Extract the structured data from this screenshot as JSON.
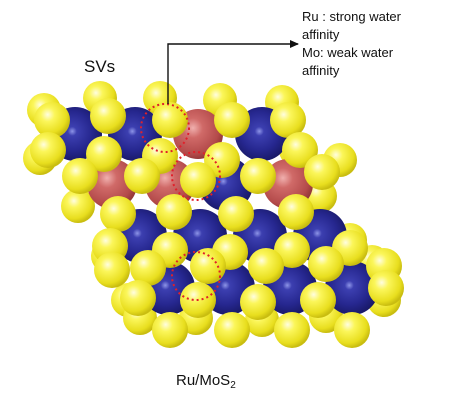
{
  "annotation": {
    "defect_label": "SVs",
    "note_lines": [
      "Ru : strong water",
      "affinity",
      "Mo: weak water",
      "affinity"
    ]
  },
  "caption": {
    "main": "Ru/MoS",
    "subscript": "2"
  },
  "colors": {
    "sulfur": "#f3ee3a",
    "molybdenum": "#24248f",
    "ruthenium": "#c25a5a",
    "vacancy_marker": "#e0202a",
    "arrow": "#111111"
  }
}
